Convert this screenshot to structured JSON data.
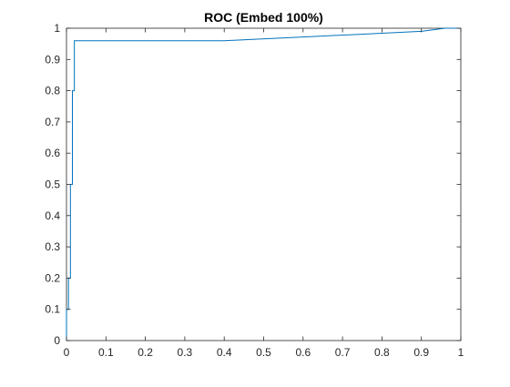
{
  "chart_data": {
    "type": "line",
    "title": "ROC (Embed 100%)",
    "xlabel": "",
    "ylabel": "",
    "xlim": [
      0,
      1
    ],
    "ylim": [
      0,
      1
    ],
    "x_ticks": [
      "0",
      "0.1",
      "0.2",
      "0.3",
      "0.4",
      "0.5",
      "0.6",
      "0.7",
      "0.8",
      "0.9",
      "1"
    ],
    "y_ticks": [
      "0",
      "0.1",
      "0.2",
      "0.3",
      "0.4",
      "0.5",
      "0.6",
      "0.7",
      "0.8",
      "0.9",
      "1"
    ],
    "grid": false,
    "box": true,
    "series": [
      {
        "color": "#0072BD",
        "points": [
          [
            0,
            0
          ],
          [
            0,
            0.1
          ],
          [
            0.005,
            0.1
          ],
          [
            0.005,
            0.2
          ],
          [
            0.01,
            0.2
          ],
          [
            0.01,
            0.5
          ],
          [
            0.015,
            0.5
          ],
          [
            0.015,
            0.8
          ],
          [
            0.02,
            0.8
          ],
          [
            0.02,
            0.96
          ],
          [
            0.4,
            0.96
          ],
          [
            0.9,
            0.99
          ],
          [
            0.96,
            1.0
          ],
          [
            1.0,
            1.0
          ]
        ]
      }
    ]
  }
}
